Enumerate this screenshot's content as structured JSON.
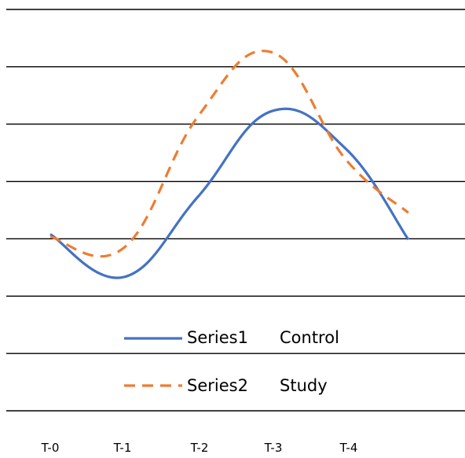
{
  "chart_data": {
    "type": "line",
    "categories": [
      "T-0",
      "T-1",
      "T-2",
      "T-3",
      "T-4"
    ],
    "x": [
      0,
      1,
      2,
      3,
      4,
      4.85
    ],
    "series": [
      {
        "name": "Series1",
        "label": "Control",
        "color": "#4472C4",
        "dash": "solid",
        "values": [
          1.3,
          0.5,
          2.0,
          3.6,
          2.9,
          1.2
        ]
      },
      {
        "name": "Series2",
        "label": "Study",
        "color": "#ED7D31",
        "dash": "dashed",
        "values": [
          1.25,
          1.05,
          3.5,
          4.7,
          2.7,
          1.7
        ]
      }
    ],
    "ylim": [
      -2,
      5.5
    ],
    "gridlines": true,
    "legend": "inside-bottom",
    "title": "",
    "xlabel": "",
    "ylabel": ""
  }
}
